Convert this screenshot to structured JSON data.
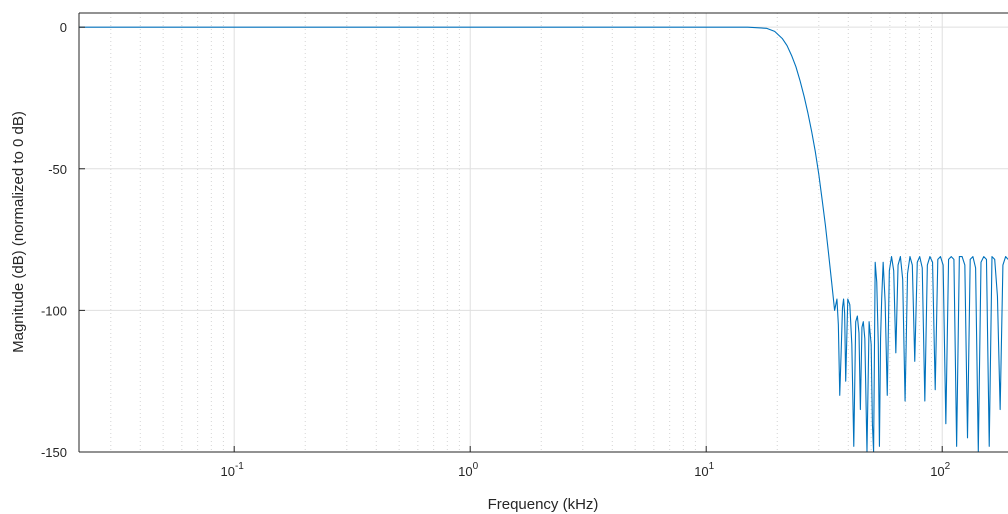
{
  "chart_data": {
    "type": "line",
    "title": "",
    "xlabel": "Frequency (kHz)",
    "ylabel": "Magnitude (dB) (normalized to 0 dB)",
    "xscale": "log",
    "xlim": [
      0.022,
      190
    ],
    "ylim": [
      -150,
      5
    ],
    "grid": true,
    "minor_grid_x": true,
    "x_ticks": [
      {
        "value": 0.1,
        "base": "10",
        "exp": "-1"
      },
      {
        "value": 1,
        "base": "10",
        "exp": "0"
      },
      {
        "value": 10,
        "base": "10",
        "exp": "1"
      },
      {
        "value": 100,
        "base": "10",
        "exp": "2"
      }
    ],
    "y_ticks": [
      {
        "value": 0,
        "label": "0"
      },
      {
        "value": -50,
        "label": "-50"
      },
      {
        "value": -100,
        "label": "-100"
      },
      {
        "value": -150,
        "label": "-150"
      }
    ],
    "line_color": "#0072BD",
    "series": [
      {
        "x": [
          0.022,
          1,
          5,
          10,
          15,
          18,
          19.5,
          21,
          22,
          23,
          24,
          25,
          26,
          27,
          28,
          29,
          30,
          31,
          32,
          33,
          34,
          35,
          35.8,
          36.3,
          36.8,
          37.3,
          37.8,
          38.2,
          38.6,
          39.0,
          39.8,
          40.6,
          41.4,
          42.2,
          43.0,
          43.7,
          44.4,
          45.0,
          45.7,
          46.3,
          47.0,
          48.0,
          49.0,
          50.0,
          50.6,
          51.2,
          52.0,
          52.8,
          53.6,
          54.2,
          54.8,
          55.4,
          56.2,
          57.3,
          58.5,
          59.7,
          61.0,
          62.3,
          63.6,
          65.0,
          66.5,
          68.0,
          69.6,
          71.3,
          73.0,
          74.7,
          76.5,
          78.4,
          80.3,
          82.3,
          84.4,
          86.5,
          88.7,
          91.0,
          93.4,
          95.8,
          98.3,
          100.9,
          103.6,
          106.4,
          109.2,
          112.1,
          115.1,
          118.2,
          121.4,
          124.7,
          128.0,
          131.4,
          134.9,
          138.5,
          142.2,
          146.0,
          150.0,
          154.0,
          158.2,
          162.5,
          166.9,
          171.4,
          176.0,
          180.8,
          185.7,
          190.0
        ],
        "y": [
          0,
          0,
          0,
          0,
          0,
          -0.4,
          -1.5,
          -4,
          -6.5,
          -10,
          -14,
          -19,
          -24.5,
          -30.5,
          -37,
          -44,
          -52,
          -61,
          -70,
          -80,
          -90,
          -100,
          -96,
          -105,
          -130,
          -115,
          -99,
          -96,
          -101,
          -125,
          -96,
          -98,
          -112,
          -148,
          -104,
          -102,
          -108,
          -135,
          -106,
          -104,
          -110,
          -150,
          -104,
          -112,
          -140,
          -150,
          -83,
          -90,
          -112,
          -148,
          -110,
          -96,
          -83,
          -97,
          -130,
          -86,
          -81,
          -86,
          -115,
          -84,
          -81,
          -89,
          -132,
          -87,
          -81,
          -84,
          -118,
          -83,
          -81,
          -85,
          -132,
          -84,
          -81,
          -83,
          -128,
          -82,
          -81,
          -84,
          -140,
          -82,
          -81,
          -82,
          -148,
          -81,
          -81,
          -84,
          -145,
          -82,
          -81,
          -85,
          -150,
          -83,
          -81,
          -82,
          -148,
          -81,
          -82,
          -95,
          -135,
          -84,
          -81,
          -82
        ]
      }
    ]
  },
  "caption_fragment": "Frequency (kHz)"
}
